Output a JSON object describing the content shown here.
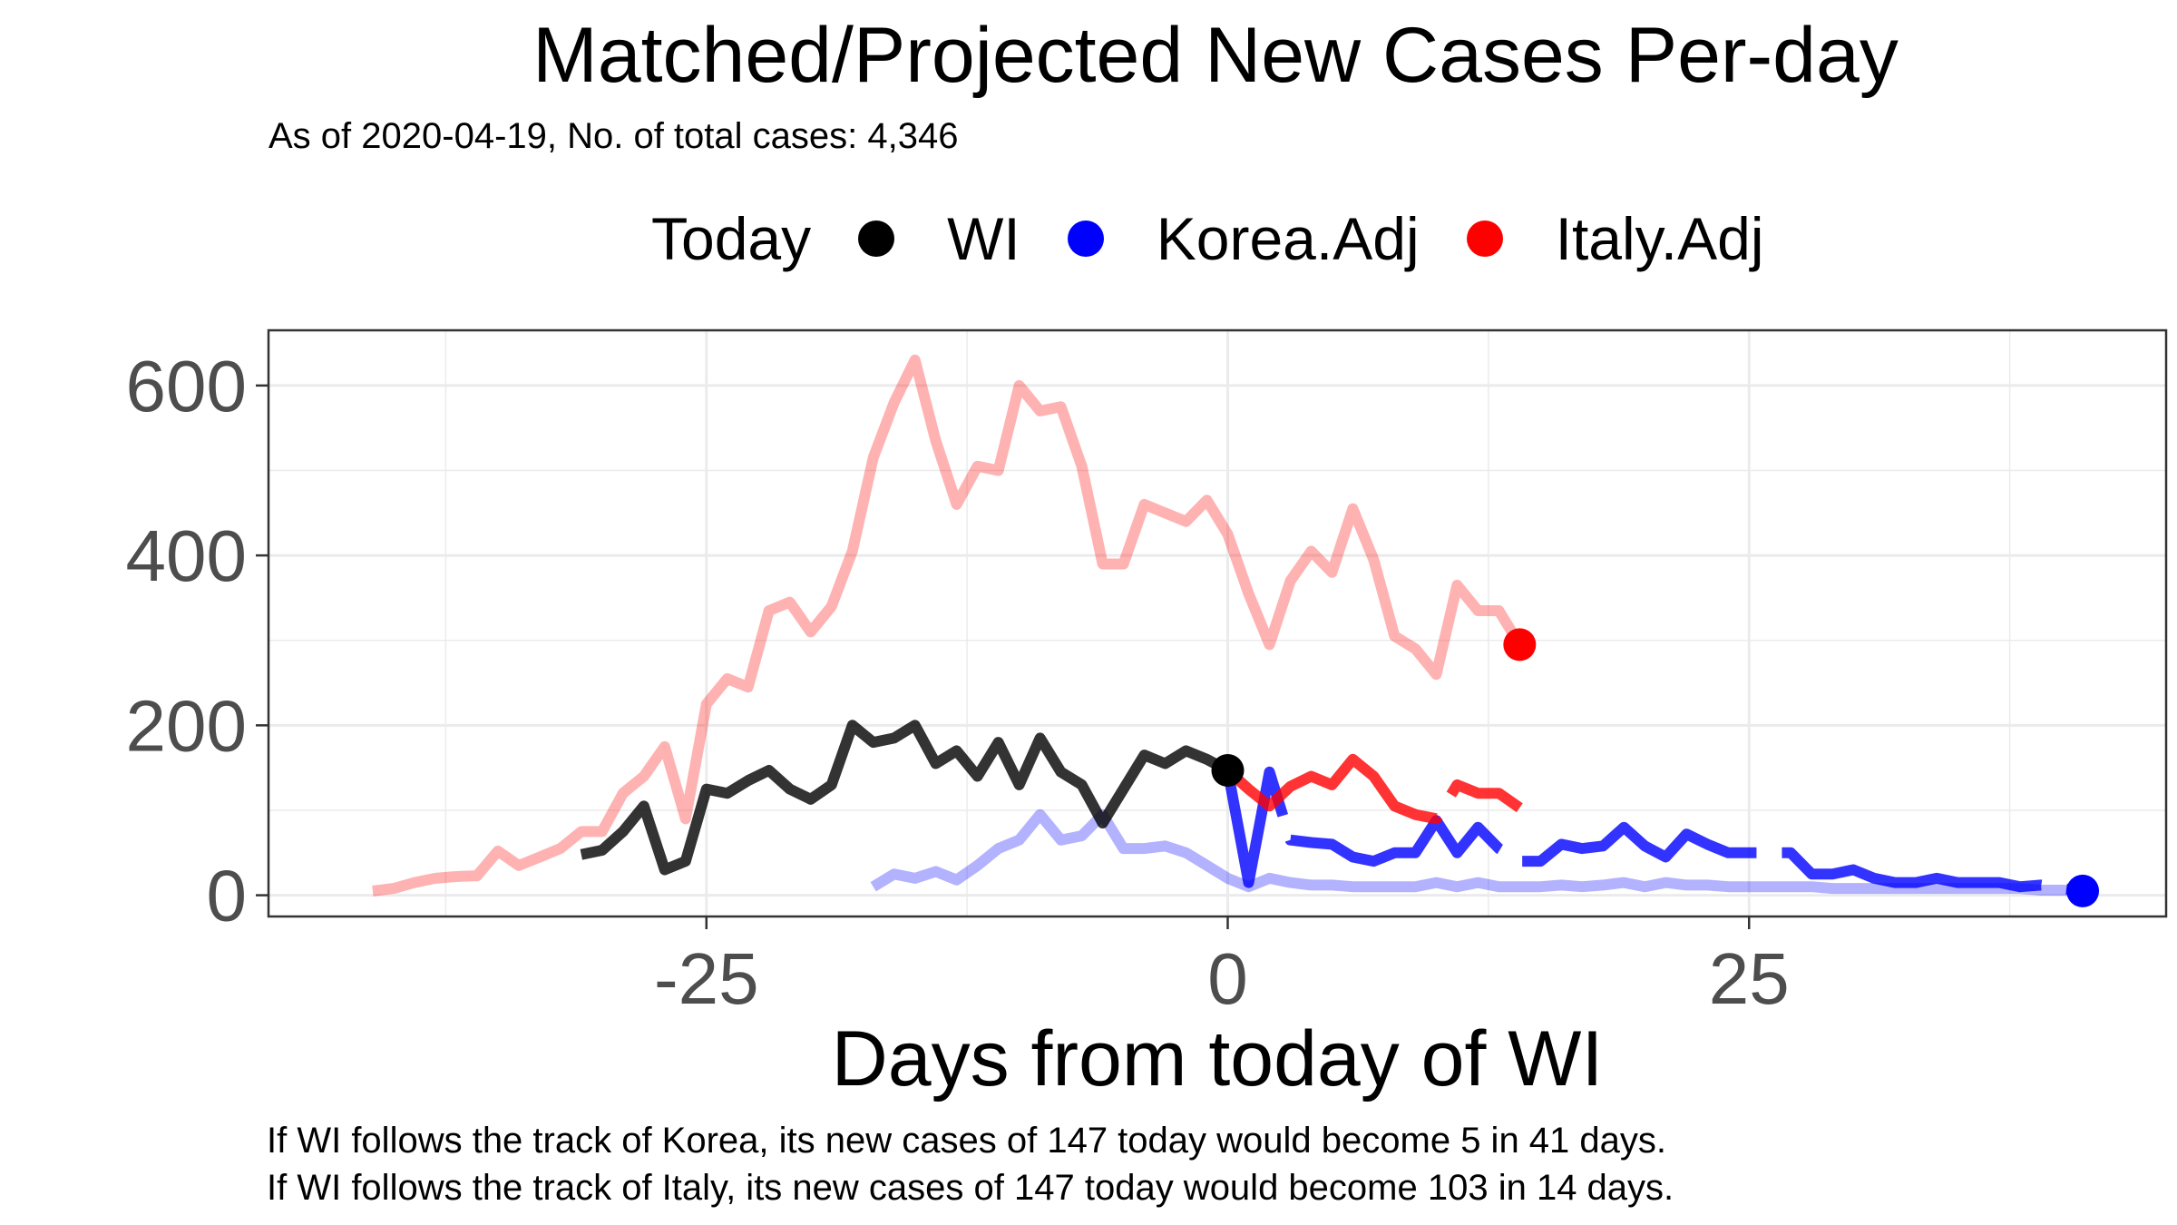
{
  "title": "Matched/Projected New Cases Per-day",
  "subtitle": "As of 2020-04-19, No. of total cases: 4,346",
  "legend": {
    "title": "Today",
    "items": [
      {
        "label": "WI",
        "color": "#000000"
      },
      {
        "label": "Korea.Adj",
        "color": "#0000ff"
      },
      {
        "label": "Italy.Adj",
        "color": "#ff0000"
      }
    ]
  },
  "captions": [
    "If WI follows the track of Korea, its new cases of 147 today would become 5 in 41 days.",
    "If WI follows the track of Italy, its new cases of 147 today would become 103 in 14 days."
  ],
  "chart_data": {
    "type": "line",
    "xlabel": "Days from today of WI",
    "ylabel": "",
    "xlim": [
      -46,
      45
    ],
    "ylim": [
      -25,
      665
    ],
    "x_ticks": [
      -25,
      0,
      25
    ],
    "x_tick_labels": [
      "-25",
      "0",
      "25"
    ],
    "y_ticks": [
      0,
      200,
      400,
      600
    ],
    "y_tick_labels": [
      "0",
      "200",
      "400",
      "600"
    ],
    "grid": true,
    "legend_position": "top",
    "series": [
      {
        "name": "Italy.Adj",
        "color": "#ff0000",
        "history_opacity": 0.3,
        "x": [
          -41,
          -40,
          -39,
          -38,
          -37,
          -36,
          -35,
          -34,
          -33,
          -32,
          -31,
          -30,
          -29,
          -28,
          -27,
          -26,
          -25,
          -24,
          -23,
          -22,
          -21,
          -20,
          -19,
          -18,
          -17,
          -16,
          -15,
          -14,
          -13,
          -12,
          -11,
          -10,
          -9,
          -8,
          -7,
          -6,
          -5,
          -4,
          -3,
          -2,
          -1,
          0,
          1,
          2,
          3,
          4,
          5,
          6,
          7,
          8,
          9,
          10,
          11,
          12,
          13,
          14
        ],
        "y": [
          5,
          8,
          15,
          20,
          22,
          23,
          52,
          35,
          45,
          55,
          75,
          75,
          120,
          140,
          175,
          90,
          225,
          255,
          245,
          335,
          345,
          310,
          340,
          405,
          515,
          580,
          630,
          535,
          460,
          505,
          500,
          600,
          570,
          575,
          505,
          390,
          390,
          460,
          450,
          440,
          465,
          425,
          355,
          295,
          370,
          405,
          380,
          455,
          395,
          305,
          290,
          260,
          365,
          335,
          335,
          295
        ]
      },
      {
        "name": "WI",
        "color": "#000000",
        "x": [
          -31,
          -30,
          -29,
          -28,
          -27,
          -26,
          -25,
          -24,
          -23,
          -22,
          -21,
          -20,
          -19,
          -18,
          -17,
          -16,
          -15,
          -14,
          -13,
          -12,
          -11,
          -10,
          -9,
          -8,
          -7,
          -6,
          -5,
          -4,
          -3,
          -2,
          -1,
          0
        ],
        "y": [
          48,
          53,
          75,
          105,
          30,
          40,
          125,
          120,
          135,
          147,
          125,
          113,
          130,
          200,
          180,
          185,
          200,
          155,
          170,
          140,
          180,
          130,
          185,
          145,
          130,
          85,
          125,
          165,
          155,
          170,
          160,
          147
        ]
      },
      {
        "name": "Korea.Adj",
        "color": "#0000ff",
        "history_opacity": 0.3,
        "x": [
          -17,
          -16,
          -15,
          -14,
          -13,
          -12,
          -11,
          -10,
          -9,
          -8,
          -7,
          -6,
          -5,
          -4,
          -3,
          -2,
          -1,
          0,
          1,
          2,
          3,
          4,
          5,
          6,
          7,
          8,
          9,
          10,
          11,
          12,
          13,
          14,
          15,
          16,
          17,
          18,
          19,
          20,
          21,
          22,
          23,
          24,
          25,
          26,
          27,
          28,
          29,
          30,
          31,
          32,
          33,
          34,
          35,
          36,
          37,
          38,
          39,
          40,
          41
        ],
        "y": [
          10,
          25,
          20,
          28,
          18,
          35,
          55,
          65,
          95,
          65,
          70,
          95,
          55,
          55,
          58,
          50,
          35,
          20,
          10,
          20,
          15,
          12,
          12,
          10,
          10,
          10,
          10,
          15,
          10,
          15,
          10,
          10,
          10,
          12,
          10,
          12,
          15,
          10,
          15,
          12,
          12,
          10,
          10,
          10,
          10,
          10,
          8,
          8,
          8,
          8,
          8,
          8,
          8,
          8,
          8,
          8,
          6,
          6,
          5
        ]
      },
      {
        "name": "Korea.Adj",
        "color": "#0000ff",
        "dashed": true,
        "x": [
          0,
          1,
          2,
          3,
          4,
          5,
          6,
          7,
          8,
          9,
          10,
          11,
          12,
          13,
          14,
          15,
          16,
          17,
          18,
          19,
          20,
          21,
          22,
          23,
          24,
          25,
          26,
          27,
          28,
          29,
          30,
          31,
          32,
          33,
          34,
          35,
          36,
          37,
          38,
          39,
          40,
          41
        ],
        "y": [
          147,
          15,
          145,
          65,
          62,
          60,
          45,
          40,
          50,
          50,
          88,
          50,
          80,
          55,
          40,
          40,
          60,
          55,
          58,
          80,
          58,
          45,
          72,
          60,
          50,
          50,
          50,
          50,
          25,
          25,
          30,
          20,
          15,
          15,
          20,
          15,
          15,
          15,
          10,
          12,
          8,
          5
        ]
      },
      {
        "name": "Italy.Adj",
        "color": "#ff0000",
        "dashed": true,
        "x": [
          0,
          1,
          2,
          3,
          4,
          5,
          6,
          7,
          8,
          9,
          10,
          11,
          12,
          13,
          14
        ],
        "y": [
          147,
          125,
          105,
          128,
          140,
          130,
          160,
          140,
          105,
          95,
          90,
          130,
          120,
          120,
          103
        ]
      }
    ],
    "today_points": [
      {
        "series": "WI",
        "x": 0,
        "y": 147,
        "color": "#000000"
      },
      {
        "series": "Korea.Adj",
        "x": 41,
        "y": 5,
        "color": "#0000ff"
      },
      {
        "series": "Italy.Adj",
        "x": 14,
        "y": 295,
        "color": "#ff0000"
      }
    ]
  }
}
